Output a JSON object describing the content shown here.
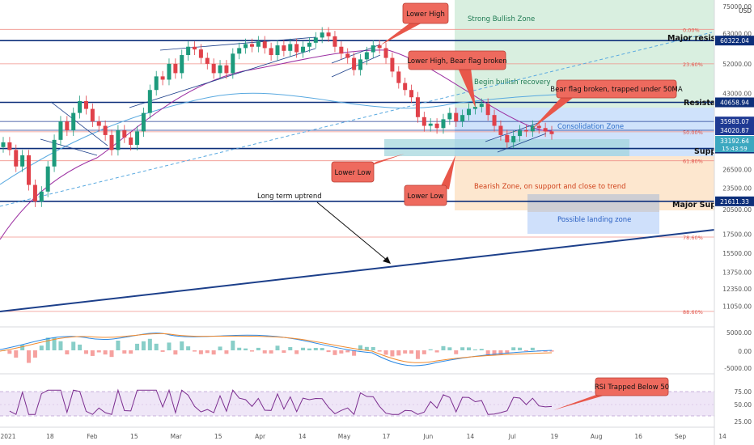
{
  "chart_data": {
    "type": "candlestick",
    "symbol_currency": "USD",
    "y_axis": {
      "scale": "log",
      "range": [
        10000,
        75000
      ],
      "ticks": [
        {
          "value": 75000,
          "label": "75000.00"
        },
        {
          "value": 63000,
          "label": "63000.00"
        },
        {
          "value": 52000,
          "label": "52000.00"
        },
        {
          "value": 43000,
          "label": "43000.00"
        },
        {
          "value": 34000,
          "label": "34000.00"
        },
        {
          "value": 26500,
          "label": "26500.00"
        },
        {
          "value": 23500,
          "label": "23500.00"
        },
        {
          "value": 20500,
          "label": "20500.00"
        },
        {
          "value": 17500,
          "label": "17500.00"
        },
        {
          "value": 15500,
          "label": "15500.00"
        },
        {
          "value": 13750,
          "label": "13750.00"
        },
        {
          "value": 12350,
          "label": "12350.00"
        },
        {
          "value": 11050,
          "label": "11050.00"
        }
      ]
    },
    "x_axis": {
      "ticks": [
        "2021",
        "18",
        "Feb",
        "15",
        "Mar",
        "15",
        "Apr",
        "14",
        "May",
        "17",
        "Jun",
        "14",
        "Jul",
        "19",
        "Aug",
        "16",
        "Sep",
        "14"
      ]
    },
    "price_levels": [
      {
        "name": "Major resistance",
        "value": 60322.04,
        "label": "60322.04",
        "color": "#0d2f7a"
      },
      {
        "name": "Resistance",
        "value": 40658.94,
        "label": "40658.94",
        "color": "#0d2f7a"
      },
      {
        "name": "",
        "value": 35983.07,
        "label": "35983.07",
        "color": "#1f3a93"
      },
      {
        "name": "",
        "value": 34020.87,
        "label": "34020.87",
        "color": "#1f3a93"
      },
      {
        "name": "Support",
        "value": 30275.9,
        "label": "30275.90",
        "color": "#0d2f7a"
      },
      {
        "name": "Major Support",
        "value": 21611.33,
        "label": "21611.33",
        "color": "#0d2f7a"
      }
    ],
    "current_price": {
      "value": 33192.64,
      "label": "33192.64",
      "countdown": "15:43:59"
    },
    "fib_levels": [
      {
        "label": "0.00%",
        "value": 64800
      },
      {
        "label": "23.60%",
        "value": 52000
      },
      {
        "label": "50.00%",
        "value": 33700
      },
      {
        "label": "61.80%",
        "value": 28000
      },
      {
        "label": "78.60%",
        "value": 17200
      },
      {
        "label": "88.60%",
        "value": 10700
      }
    ],
    "zones": [
      {
        "label": "Strong Bullish Zone"
      },
      {
        "label": "Begin bullish recovery"
      },
      {
        "label": "Consolidation Zone"
      },
      {
        "label": "Bearish Zone, on support and close to trend"
      },
      {
        "label": "Possible landing zone"
      }
    ],
    "callouts": [
      {
        "label": "Lower High"
      },
      {
        "label": "Lower High, Bear flag broken"
      },
      {
        "label": "Bear flag broken, trapped under 50MA"
      },
      {
        "label": "Lower Low"
      },
      {
        "label": "Lower Low"
      },
      {
        "label": "RSI Trapped Below 50"
      }
    ],
    "annotations": [
      {
        "label": "Long term uptrend"
      }
    ],
    "price_series": [
      31500,
      30000,
      27000,
      29000,
      24000,
      21600,
      23000,
      27000,
      32000,
      36000,
      34000,
      38000,
      41000,
      39000,
      36000,
      35000,
      33000,
      30000,
      34000,
      32500,
      31000,
      33800,
      38000,
      44000,
      48000,
      47000,
      52000,
      49000,
      55000,
      58000,
      57000,
      54000,
      52000,
      49000,
      51500,
      49000,
      55500,
      57500,
      59000,
      58000,
      60000,
      57500,
      55000,
      58500,
      56500,
      59000,
      56000,
      58000,
      59500,
      61500,
      63500,
      62000,
      58000,
      55500,
      54000,
      50000,
      53500,
      56000,
      58500,
      57500,
      54000,
      49500,
      46000,
      44000,
      42000,
      37000,
      35000,
      35500,
      34500,
      36500,
      38000,
      36000,
      37500,
      39000,
      39500,
      40300,
      37500,
      35000,
      33000,
      31500,
      32800,
      34000,
      33800,
      35000,
      34500,
      33800,
      33200
    ],
    "macd": {
      "axis_ticks": [
        {
          "value": 5000,
          "label": "5000.00"
        },
        {
          "value": 0,
          "label": "0.00"
        },
        {
          "value": -5000,
          "label": "-5000.00"
        }
      ]
    },
    "rsi": {
      "axis_ticks": [
        {
          "value": 75,
          "label": "75.00"
        },
        {
          "value": 50,
          "label": "50.00"
        },
        {
          "value": 25,
          "label": "25.00"
        }
      ]
    }
  }
}
